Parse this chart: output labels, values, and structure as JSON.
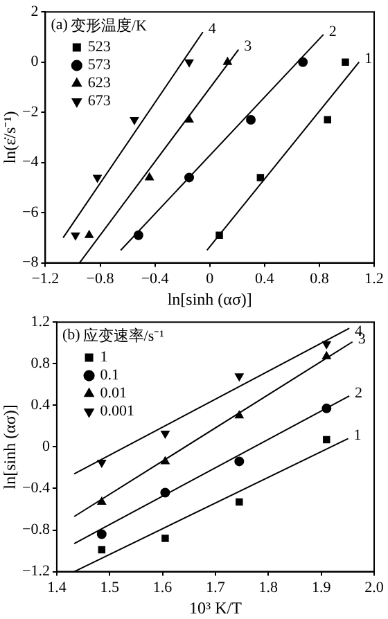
{
  "chart_data": [
    {
      "type": "scatter",
      "xlabel": "ln[sinh (ασ)]",
      "ylabel": "ln(ε̇/s⁻¹)",
      "legend_title": "变形温度/K",
      "legend": "top left",
      "grid": false,
      "xlim": [
        -1.2,
        1.2
      ],
      "xticks": [
        -1.2,
        -0.8,
        -0.4,
        0,
        0.4,
        0.8,
        1.2
      ],
      "ylim": [
        -8,
        2
      ],
      "yticks": [
        -8,
        -6,
        -4,
        -2,
        0,
        2
      ],
      "annotations": [
        "(a)"
      ],
      "series": [
        {
          "name": "523",
          "type": "scatter",
          "marker": "square",
          "color": "#000000",
          "x": [
            0.07,
            0.37,
            0.86,
            0.99
          ],
          "values": [
            -6.9,
            -4.6,
            -2.3,
            0
          ]
        },
        {
          "name": "573",
          "type": "scatter",
          "marker": "circle",
          "color": "#000000",
          "x": [
            -0.52,
            -0.15,
            0.3,
            0.68
          ],
          "values": [
            -6.9,
            -4.6,
            -2.3,
            0
          ]
        },
        {
          "name": "623",
          "type": "scatter",
          "marker": "triangle",
          "color": "#000000",
          "x": [
            -0.88,
            -0.44,
            -0.15,
            0.13
          ],
          "values": [
            -6.9,
            -4.6,
            -2.3,
            0
          ]
        },
        {
          "name": "673",
          "type": "scatter",
          "marker": "triangle_down",
          "color": "#000000",
          "x": [
            -0.98,
            -0.82,
            -0.55,
            -0.15
          ],
          "values": [
            -6.9,
            -4.6,
            -2.3,
            0
          ]
        },
        {
          "name": "1",
          "type": "line",
          "marker": "none",
          "color": "#000000",
          "x": [
            -0.02,
            1.09
          ],
          "values": [
            -7.5,
            0
          ]
        },
        {
          "name": "2",
          "type": "line",
          "marker": "none",
          "color": "#000000",
          "x": [
            -0.65,
            0.83
          ],
          "values": [
            -7.5,
            1.1
          ]
        },
        {
          "name": "3",
          "type": "line",
          "marker": "none",
          "color": "#000000",
          "x": [
            -0.95,
            0.21
          ],
          "values": [
            -8.0,
            0.5
          ]
        },
        {
          "name": "4",
          "type": "line",
          "marker": "none",
          "color": "#000000",
          "x": [
            -1.07,
            -0.05
          ],
          "values": [
            -7.0,
            1.2
          ]
        }
      ]
    },
    {
      "type": "scatter",
      "xlabel": "10³ K/T",
      "ylabel": "ln[sinh (ασ)]",
      "legend_title": "应变速率/s⁻¹",
      "legend": "top left",
      "grid": false,
      "xlim": [
        1.4,
        2.0
      ],
      "xticks": [
        1.4,
        1.5,
        1.6,
        1.7,
        1.8,
        1.9,
        {
          "value": 2.0,
          "label": "2.0"
        }
      ],
      "ylim": [
        -1.2,
        1.2
      ],
      "yticks": [
        -1.2,
        -0.8,
        -0.4,
        0,
        0.4,
        0.8,
        1.2
      ],
      "annotations": [
        "(b)"
      ],
      "series": [
        {
          "name": "1",
          "type": "scatter",
          "marker": "square",
          "color": "#000000",
          "x": [
            1.485,
            1.605,
            1.745,
            1.91
          ],
          "values": [
            -0.99,
            -0.88,
            -0.53,
            0.07
          ]
        },
        {
          "name": "0.1",
          "type": "scatter",
          "marker": "circle",
          "color": "#000000",
          "x": [
            1.485,
            1.605,
            1.745,
            1.91
          ],
          "values": [
            -0.84,
            -0.44,
            -0.14,
            0.37
          ]
        },
        {
          "name": "0.01",
          "type": "scatter",
          "marker": "triangle",
          "color": "#000000",
          "x": [
            1.485,
            1.605,
            1.745,
            1.91
          ],
          "values": [
            -0.53,
            -0.14,
            0.3,
            0.87
          ]
        },
        {
          "name": "0.001",
          "type": "scatter",
          "marker": "triangle_down",
          "color": "#000000",
          "x": [
            1.485,
            1.605,
            1.745,
            1.91
          ],
          "values": [
            -0.15,
            0.13,
            0.68,
            0.99
          ]
        },
        {
          "name": "1",
          "type": "line",
          "marker": "none",
          "color": "#000000",
          "x": [
            1.433,
            1.951
          ],
          "values": [
            -1.2,
            0.08
          ]
        },
        {
          "name": "2",
          "type": "line",
          "marker": "none",
          "color": "#000000",
          "x": [
            1.433,
            1.953
          ],
          "values": [
            -0.93,
            0.49
          ]
        },
        {
          "name": "3",
          "type": "line",
          "marker": "none",
          "color": "#000000",
          "x": [
            1.433,
            1.959
          ],
          "values": [
            -0.67,
            1.01
          ]
        },
        {
          "name": "4",
          "type": "line",
          "marker": "none",
          "color": "#000000",
          "x": [
            1.433,
            1.953
          ],
          "values": [
            -0.26,
            1.14
          ]
        }
      ]
    }
  ]
}
